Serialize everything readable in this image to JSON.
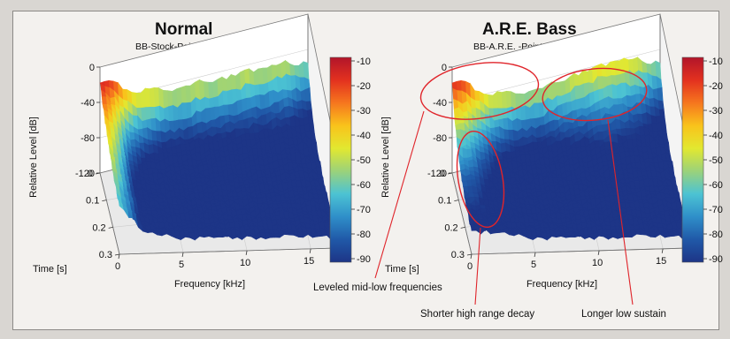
{
  "chart_data": [
    {
      "type": "heatmap",
      "subtype": "3d-waterfall-surface",
      "title": "Normal",
      "subtitle": "BB-Stock-Point 1",
      "xlabel": "Frequency [kHz]",
      "ylabel": "Time [s]",
      "zlabel": "Relative Level [dB]",
      "xticks": [
        "0",
        "5",
        "10",
        "15"
      ],
      "yticks": [
        "0",
        "0.1",
        "0.2",
        "0.3"
      ],
      "zticks": [
        "0",
        "-40",
        "-80",
        "-120"
      ],
      "xlim": [
        0,
        17
      ],
      "ylim": [
        0,
        0.3
      ],
      "zlim": [
        -120,
        0
      ],
      "colorbar": {
        "ticks": [
          "-10",
          "-20",
          "-30",
          "-40",
          "-50",
          "-60",
          "-70",
          "-80",
          "-90"
        ],
        "range": [
          -90,
          -10
        ],
        "colors": [
          "#b2152a",
          "#e3311f",
          "#f6761e",
          "#f9c31b",
          "#e2e830",
          "#9bd27a",
          "#4cc3d3",
          "#2f8fc9",
          "#2059a8",
          "#1d3587"
        ]
      },
      "profile_khz": [
        0,
        1,
        2,
        3,
        4,
        5,
        6,
        7,
        8,
        9,
        10,
        11,
        12,
        13,
        14,
        15,
        16,
        17
      ],
      "level_start_db": [
        -15,
        -22,
        -30,
        -38,
        -40,
        -44,
        -47,
        -46,
        -44,
        -47,
        -48,
        -47,
        -46,
        -48,
        -49,
        -47,
        -52,
        -55
      ],
      "level_end_db": [
        -75,
        -80,
        -95,
        -98,
        -100,
        -102,
        -103,
        -104,
        -104,
        -103,
        -104,
        -105,
        -103,
        -104,
        -105,
        -104,
        -106,
        -108
      ],
      "time_constant_s": [
        0.2,
        0.11,
        0.05,
        0.04,
        0.035,
        0.03,
        0.03,
        0.03,
        0.035,
        0.035,
        0.04,
        0.04,
        0.04,
        0.04,
        0.045,
        0.045,
        0.04,
        0.04
      ]
    },
    {
      "type": "heatmap",
      "subtype": "3d-waterfall-surface",
      "title": "A.R.E. Bass",
      "subtitle": "BB-A.R.E. -Point 1",
      "xlabel": "Frequency [kHz]",
      "ylabel": "Time [s]",
      "zlabel": "Relative Level [dB]",
      "xticks": [
        "0",
        "5",
        "10",
        "15"
      ],
      "yticks": [
        "0",
        "0.1",
        "0.2",
        "0.3"
      ],
      "zticks": [
        "0",
        "-40",
        "-80",
        "-120"
      ],
      "xlim": [
        0,
        17
      ],
      "ylim": [
        0,
        0.3
      ],
      "zlim": [
        -120,
        0
      ],
      "colorbar": {
        "ticks": [
          "-10",
          "-20",
          "-30",
          "-40",
          "-50",
          "-60",
          "-70",
          "-80",
          "-90"
        ],
        "range": [
          -90,
          -10
        ],
        "colors": [
          "#b2152a",
          "#e3311f",
          "#f6761e",
          "#f9c31b",
          "#e2e830",
          "#9bd27a",
          "#4cc3d3",
          "#2f8fc9",
          "#2059a8",
          "#1d3587"
        ]
      },
      "profile_khz": [
        0,
        1,
        2,
        3,
        4,
        5,
        6,
        7,
        8,
        9,
        10,
        11,
        12,
        13,
        14,
        15,
        16,
        17
      ],
      "level_start_db": [
        -15,
        -22,
        -32,
        -40,
        -44,
        -48,
        -50,
        -49,
        -47,
        -46,
        -44,
        -42,
        -41,
        -40,
        -41,
        -43,
        -50,
        -55
      ],
      "level_end_db": [
        -95,
        -95,
        -95,
        -98,
        -100,
        -102,
        -103,
        -104,
        -104,
        -103,
        -104,
        -105,
        -103,
        -104,
        -105,
        -104,
        -106,
        -108
      ],
      "time_constant_s": [
        0.09,
        0.09,
        0.06,
        0.045,
        0.04,
        0.035,
        0.035,
        0.035,
        0.04,
        0.045,
        0.05,
        0.055,
        0.06,
        0.06,
        0.055,
        0.05,
        0.045,
        0.04
      ],
      "annotations": [
        "Leveled mid-low frequencies",
        "Shorter high range decay",
        "Longer low sustain"
      ]
    }
  ]
}
